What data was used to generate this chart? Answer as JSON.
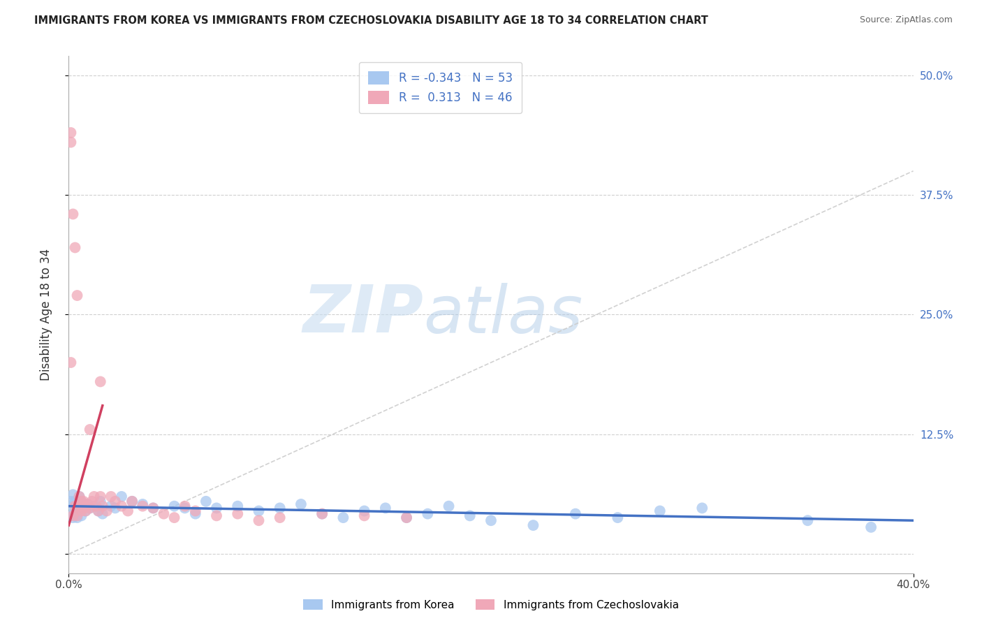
{
  "title": "IMMIGRANTS FROM KOREA VS IMMIGRANTS FROM CZECHOSLOVAKIA DISABILITY AGE 18 TO 34 CORRELATION CHART",
  "source": "Source: ZipAtlas.com",
  "ylabel": "Disability Age 18 to 34",
  "xlim": [
    0.0,
    0.4
  ],
  "ylim": [
    -0.02,
    0.52
  ],
  "korea_R": -0.343,
  "korea_N": 53,
  "czech_R": 0.313,
  "czech_N": 46,
  "korea_color": "#a8c8f0",
  "czech_color": "#f0a8b8",
  "korea_line_color": "#4472c4",
  "czech_line_color": "#d04060",
  "watermark_zip": "ZIP",
  "watermark_atlas": "atlas",
  "background_color": "#ffffff",
  "grid_color": "#d0d0d0",
  "korea_x": [
    0.001,
    0.001,
    0.002,
    0.002,
    0.002,
    0.003,
    0.003,
    0.003,
    0.004,
    0.004,
    0.005,
    0.005,
    0.006,
    0.006,
    0.007,
    0.008,
    0.009,
    0.01,
    0.012,
    0.014,
    0.015,
    0.016,
    0.02,
    0.022,
    0.025,
    0.03,
    0.035,
    0.04,
    0.05,
    0.055,
    0.06,
    0.065,
    0.07,
    0.08,
    0.09,
    0.1,
    0.11,
    0.12,
    0.13,
    0.14,
    0.15,
    0.16,
    0.17,
    0.18,
    0.19,
    0.2,
    0.22,
    0.24,
    0.26,
    0.28,
    0.3,
    0.35,
    0.38
  ],
  "korea_y": [
    0.04,
    0.055,
    0.038,
    0.05,
    0.062,
    0.042,
    0.055,
    0.045,
    0.038,
    0.052,
    0.048,
    0.06,
    0.04,
    0.055,
    0.05,
    0.045,
    0.052,
    0.048,
    0.05,
    0.045,
    0.055,
    0.042,
    0.05,
    0.048,
    0.06,
    0.055,
    0.052,
    0.048,
    0.05,
    0.048,
    0.042,
    0.055,
    0.048,
    0.05,
    0.045,
    0.048,
    0.052,
    0.042,
    0.038,
    0.045,
    0.048,
    0.038,
    0.042,
    0.05,
    0.04,
    0.035,
    0.03,
    0.042,
    0.038,
    0.045,
    0.048,
    0.035,
    0.028
  ],
  "czech_x": [
    0.001,
    0.001,
    0.002,
    0.002,
    0.003,
    0.003,
    0.004,
    0.004,
    0.005,
    0.005,
    0.006,
    0.006,
    0.007,
    0.007,
    0.008,
    0.008,
    0.009,
    0.01,
    0.01,
    0.011,
    0.012,
    0.013,
    0.014,
    0.015,
    0.015,
    0.016,
    0.018,
    0.02,
    0.022,
    0.025,
    0.028,
    0.03,
    0.035,
    0.04,
    0.045,
    0.05,
    0.055,
    0.06,
    0.07,
    0.08,
    0.09,
    0.1,
    0.12,
    0.14,
    0.16,
    0.001
  ],
  "czech_y": [
    0.44,
    0.43,
    0.355,
    0.04,
    0.05,
    0.32,
    0.27,
    0.04,
    0.05,
    0.06,
    0.045,
    0.055,
    0.048,
    0.055,
    0.05,
    0.045,
    0.052,
    0.13,
    0.048,
    0.055,
    0.06,
    0.05,
    0.045,
    0.18,
    0.06,
    0.05,
    0.045,
    0.06,
    0.055,
    0.05,
    0.045,
    0.055,
    0.05,
    0.048,
    0.042,
    0.038,
    0.05,
    0.045,
    0.04,
    0.042,
    0.035,
    0.038,
    0.042,
    0.04,
    0.038,
    0.2
  ]
}
